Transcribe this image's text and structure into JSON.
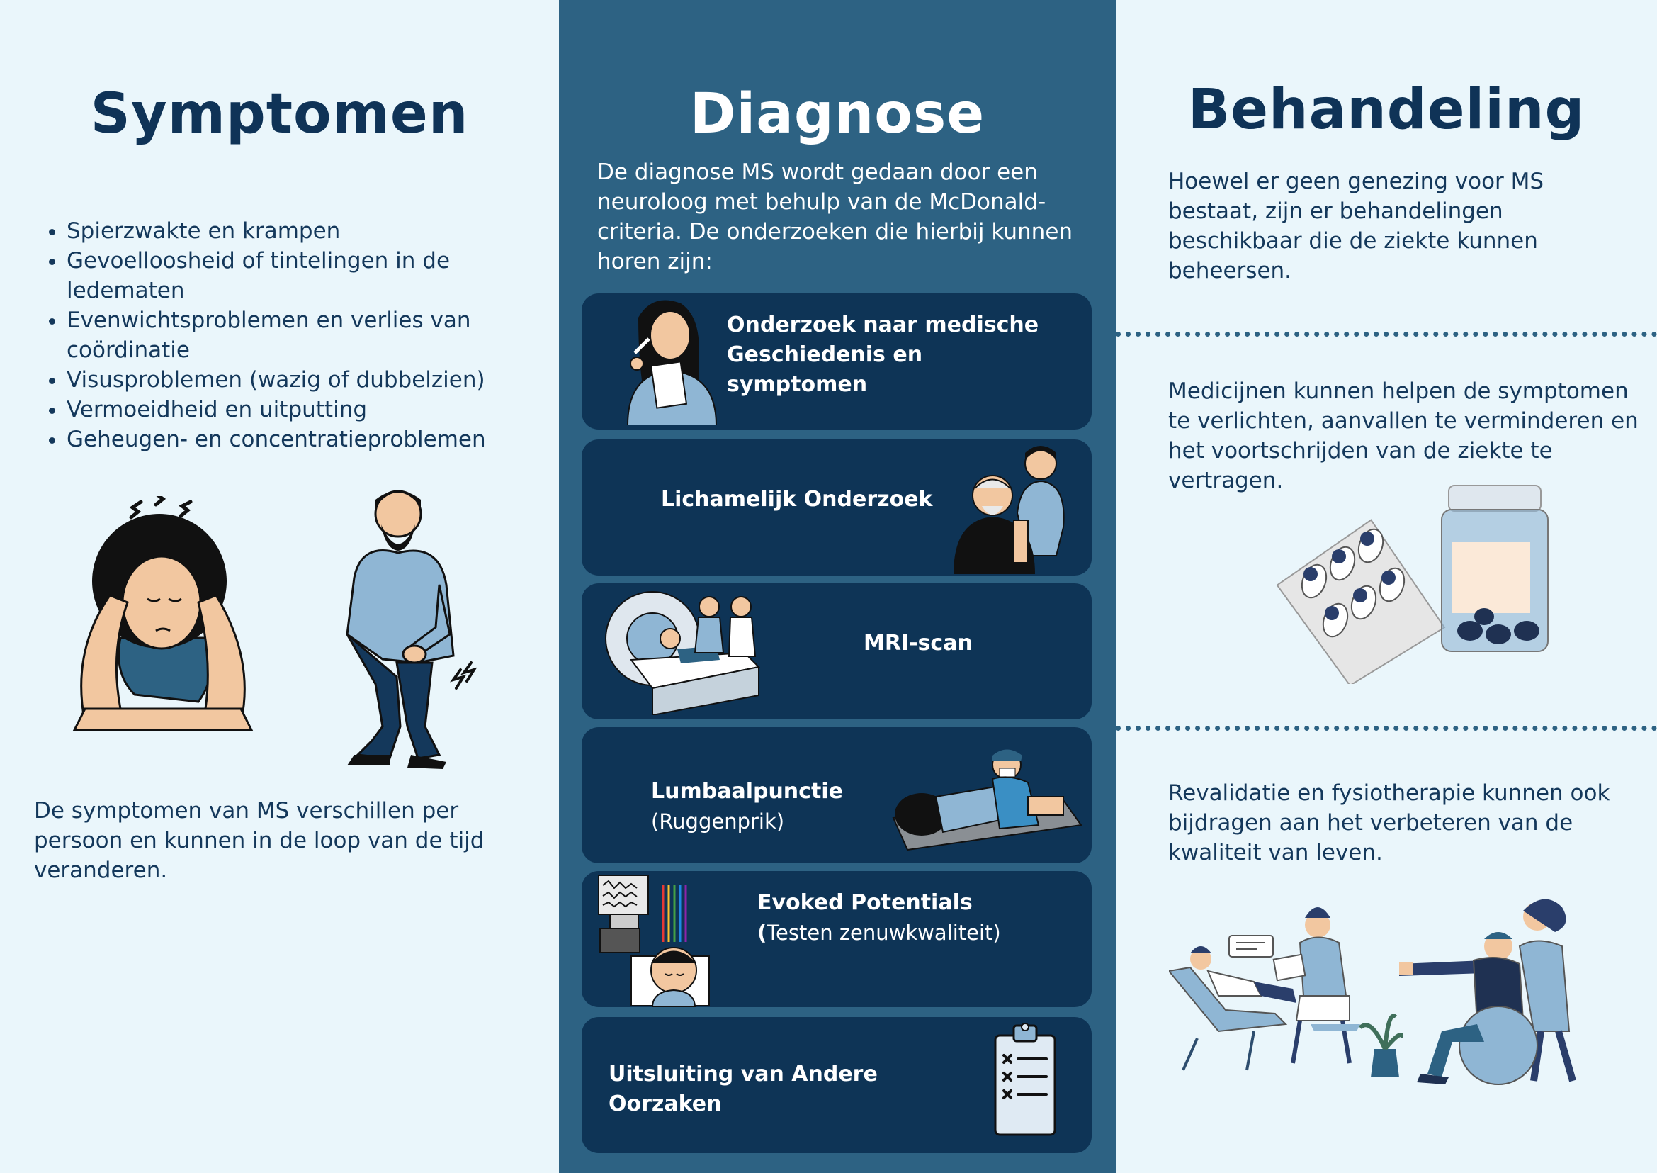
{
  "symptomen": {
    "title": "Symptomen",
    "items": [
      "Spierzwakte en krampen",
      "Gevoelloosheid of tintelingen in de ledematen",
      "Evenwichtsproblemen en verlies van coördinatie",
      "Visusproblemen (wazig of dubbelzien)",
      "Vermoeidheid en uitputting",
      "Geheugen- en concentratieproblemen"
    ],
    "footer": "De symptomen van MS verschillen per persoon en kunnen in de loop van de tijd veranderen."
  },
  "diagnose": {
    "title": "Diagnose",
    "intro": "De diagnose MS wordt gedaan door een neuroloog met behulp van de McDonald-criteria. De onderzoeken die hierbij kunnen horen zijn:",
    "cards": [
      {
        "title": "Onderzoek naar medische Geschiedenis en symptomen",
        "icon": "woman-taking-notes-icon"
      },
      {
        "title": "Lichamelijk Onderzoek",
        "icon": "nurse-with-elderly-patient-icon"
      },
      {
        "title": "MRI-scan",
        "icon": "mri-scanner-icon"
      },
      {
        "title": "Lumbaalpunctie",
        "subtitle": "(Ruggenprik)",
        "icon": "lumbar-puncture-icon"
      },
      {
        "title": "Evoked Potentials",
        "subtitle_bold": "(",
        "subtitle": "Testen zenuwkwaliteit)",
        "icon": "eeg-test-icon"
      },
      {
        "title": "Uitsluiting van Andere Oorzaken",
        "icon": "checklist-clipboard-icon"
      }
    ]
  },
  "behandeling": {
    "title": "Behandeling",
    "intro": "Hoewel er geen genezing voor MS bestaat, zijn er behandelingen beschikbaar die de ziekte kunnen beheersen.",
    "medicines": "Medicijnen kunnen helpen de symptomen te verlichten, aanvallen te verminderen en het voortschrijden van de ziekte te vertragen.",
    "rehab": "Revalidatie en fysiotherapie kunnen ook bijdragen aan het verbeteren van de kwaliteit van leven."
  },
  "colors": {
    "navy": "#0f3357",
    "middle_column": "#2d6283",
    "card": "#0e3456",
    "background": "#eaf6fb",
    "accent_blue": "#8fb6d4"
  }
}
